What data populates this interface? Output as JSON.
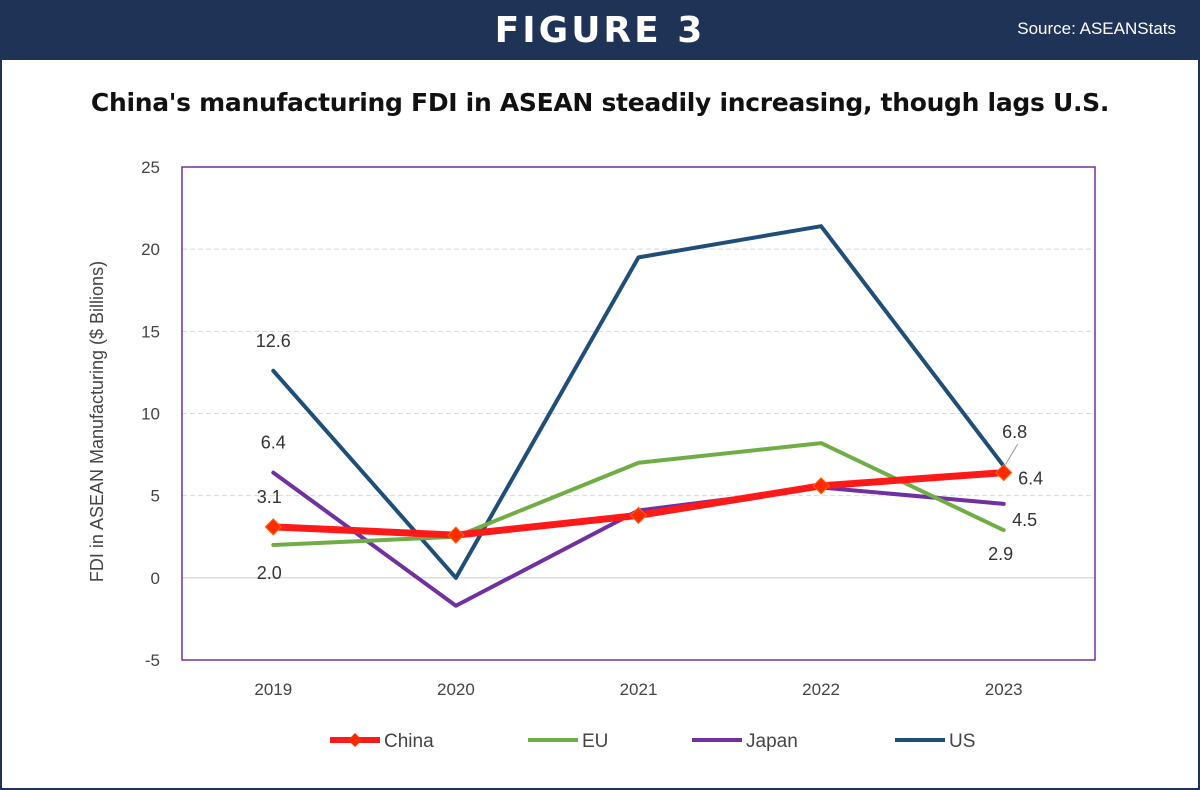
{
  "header": {
    "figure_label": "FIGURE 3",
    "source": "Source: ASEANStats"
  },
  "colors": {
    "banner": "#1f3357",
    "china": "#ff1a1a",
    "china_marker": "#ff2a00",
    "eu": "#70ad47",
    "japan": "#7030a0",
    "us": "#1f4e79",
    "plot_border": "#7030a0"
  },
  "chart_data": {
    "type": "line",
    "title": "China's manufacturing FDI in ASEAN steadily increasing, though lags U.S.",
    "xlabel": "",
    "ylabel": "FDI in ASEAN Manufacturing  ($ Billions)",
    "x": [
      "2019",
      "2020",
      "2021",
      "2022",
      "2023"
    ],
    "ylim": [
      -5,
      25
    ],
    "yticks": [
      -5,
      0,
      5,
      10,
      15,
      20,
      25
    ],
    "grid": "horizontal dashed",
    "legend_position": "bottom",
    "series": [
      {
        "name": "China",
        "key": "china",
        "values": [
          3.1,
          2.6,
          3.8,
          5.6,
          6.4
        ],
        "marker": "diamond",
        "width": "thick"
      },
      {
        "name": "EU",
        "key": "eu",
        "values": [
          2.0,
          2.5,
          7.0,
          8.2,
          2.9
        ]
      },
      {
        "name": "Japan",
        "key": "japan",
        "values": [
          6.4,
          -1.7,
          4.1,
          5.5,
          4.5
        ]
      },
      {
        "name": "US",
        "key": "us",
        "values": [
          12.6,
          0.0,
          19.5,
          21.4,
          6.8
        ]
      }
    ],
    "data_labels": [
      {
        "series": "US",
        "index": 0,
        "text": "12.6"
      },
      {
        "series": "Japan",
        "index": 0,
        "text": "6.4"
      },
      {
        "series": "China",
        "index": 0,
        "text": "3.1"
      },
      {
        "series": "EU",
        "index": 0,
        "text": "2.0"
      },
      {
        "series": "US",
        "index": 4,
        "text": "6.8"
      },
      {
        "series": "China",
        "index": 4,
        "text": "6.4"
      },
      {
        "series": "Japan",
        "index": 4,
        "text": "4.5"
      },
      {
        "series": "EU",
        "index": 4,
        "text": "2.9"
      }
    ]
  }
}
